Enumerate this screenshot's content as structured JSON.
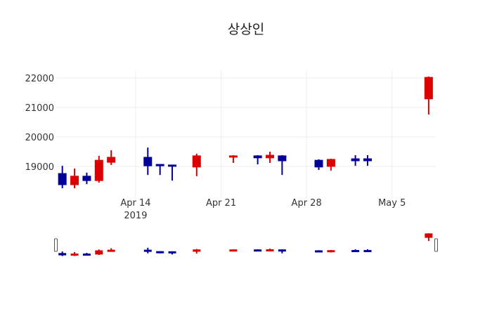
{
  "chart_data": {
    "type": "candlestick",
    "title": "상상인",
    "xlabel": "",
    "ylabel": "",
    "ylim": [
      18100,
      22300
    ],
    "y_ticks": [
      19000,
      20000,
      21000,
      22000
    ],
    "x_ticks": [
      {
        "label": "Apr 14",
        "sub": "2019",
        "date": "2019-04-14"
      },
      {
        "label": "Apr 21",
        "sub": "",
        "date": "2019-04-21"
      },
      {
        "label": "Apr 28",
        "sub": "",
        "date": "2019-04-28"
      },
      {
        "label": "May 5",
        "sub": "",
        "date": "2019-05-05"
      }
    ],
    "xlim": [
      "2019-04-07T12:00",
      "2019-05-08T14:00"
    ],
    "grid": true,
    "rangeslider": true,
    "colors": {
      "increasing": "#dd0000",
      "decreasing": "#000099"
    },
    "series": [
      {
        "date": "2019-04-08",
        "open": 18760,
        "high": 19020,
        "low": 18260,
        "close": 18380
      },
      {
        "date": "2019-04-09",
        "open": 18380,
        "high": 18930,
        "low": 18260,
        "close": 18670
      },
      {
        "date": "2019-04-10",
        "open": 18670,
        "high": 18790,
        "low": 18400,
        "close": 18520
      },
      {
        "date": "2019-04-11",
        "open": 18520,
        "high": 19360,
        "low": 18450,
        "close": 19210
      },
      {
        "date": "2019-04-12",
        "open": 19140,
        "high": 19550,
        "low": 19050,
        "close": 19310
      },
      {
        "date": "2019-04-15",
        "open": 19310,
        "high": 19640,
        "low": 18710,
        "close": 19020
      },
      {
        "date": "2019-04-16",
        "open": 19070,
        "high": 19070,
        "low": 18710,
        "close": 19020
      },
      {
        "date": "2019-04-17",
        "open": 19050,
        "high": 19050,
        "low": 18520,
        "close": 19020
      },
      {
        "date": "2019-04-19",
        "open": 18980,
        "high": 19430,
        "low": 18670,
        "close": 19360
      },
      {
        "date": "2019-04-22",
        "open": 19330,
        "high": 19380,
        "low": 19120,
        "close": 19360
      },
      {
        "date": "2019-04-24",
        "open": 19360,
        "high": 19380,
        "low": 19070,
        "close": 19290
      },
      {
        "date": "2019-04-25",
        "open": 19290,
        "high": 19500,
        "low": 19120,
        "close": 19380
      },
      {
        "date": "2019-04-26",
        "open": 19360,
        "high": 19380,
        "low": 18710,
        "close": 19190
      },
      {
        "date": "2019-04-29",
        "open": 19210,
        "high": 19240,
        "low": 18880,
        "close": 18980
      },
      {
        "date": "2019-04-30",
        "open": 19000,
        "high": 19260,
        "low": 18860,
        "close": 19240
      },
      {
        "date": "2019-05-02",
        "open": 19260,
        "high": 19380,
        "low": 19020,
        "close": 19190
      },
      {
        "date": "2019-05-03",
        "open": 19260,
        "high": 19380,
        "low": 19020,
        "close": 19190
      },
      {
        "date": "2019-05-08",
        "open": 21290,
        "high": 22050,
        "low": 20760,
        "close": 22020
      }
    ]
  }
}
